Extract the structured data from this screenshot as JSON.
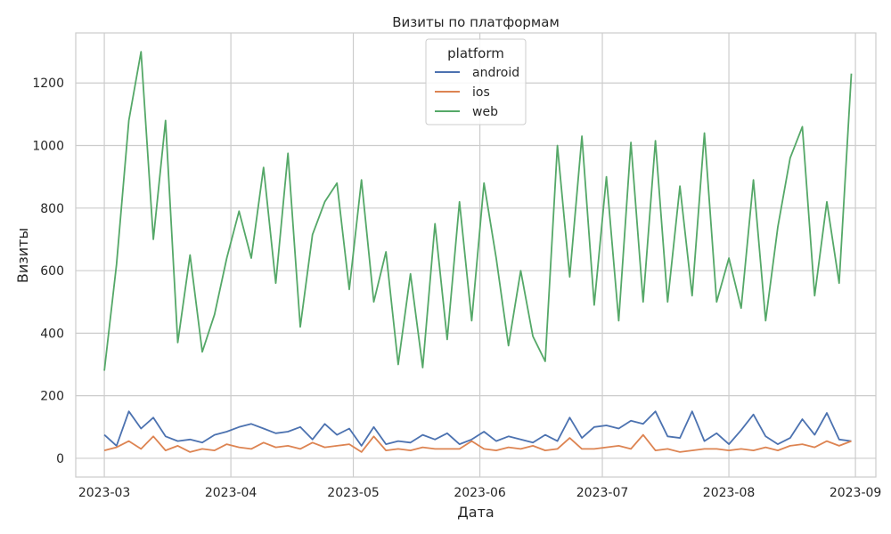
{
  "chart_data": {
    "type": "line",
    "title": "Визиты по платформам",
    "xlabel": "Дата",
    "ylabel": "Визиты",
    "xlim": [
      "2023-02-22",
      "2023-09-06"
    ],
    "ylim": [
      -60,
      1360
    ],
    "x_ticks": [
      "2023-03",
      "2023-04",
      "2023-05",
      "2023-06",
      "2023-07",
      "2023-08",
      "2023-09"
    ],
    "y_ticks": [
      0,
      200,
      400,
      600,
      800,
      1000,
      1200
    ],
    "grid": true,
    "legend": {
      "title": "platform",
      "position": "top-center"
    },
    "x": [
      "2023-03-01",
      "2023-03-04",
      "2023-03-07",
      "2023-03-10",
      "2023-03-13",
      "2023-03-16",
      "2023-03-19",
      "2023-03-22",
      "2023-03-25",
      "2023-03-28",
      "2023-03-31",
      "2023-04-03",
      "2023-04-06",
      "2023-04-09",
      "2023-04-12",
      "2023-04-15",
      "2023-04-18",
      "2023-04-21",
      "2023-04-24",
      "2023-04-27",
      "2023-04-30",
      "2023-05-03",
      "2023-05-06",
      "2023-05-09",
      "2023-05-12",
      "2023-05-15",
      "2023-05-18",
      "2023-05-21",
      "2023-05-24",
      "2023-05-27",
      "2023-05-30",
      "2023-06-02",
      "2023-06-05",
      "2023-06-08",
      "2023-06-11",
      "2023-06-14",
      "2023-06-17",
      "2023-06-20",
      "2023-06-23",
      "2023-06-26",
      "2023-06-29",
      "2023-07-02",
      "2023-07-05",
      "2023-07-08",
      "2023-07-11",
      "2023-07-14",
      "2023-07-17",
      "2023-07-20",
      "2023-07-23",
      "2023-07-26",
      "2023-07-29",
      "2023-08-01",
      "2023-08-04",
      "2023-08-07",
      "2023-08-10",
      "2023-08-13",
      "2023-08-16",
      "2023-08-19",
      "2023-08-22",
      "2023-08-25",
      "2023-08-28",
      "2023-08-31"
    ],
    "series": [
      {
        "name": "android",
        "color": "#4c72b0",
        "values": [
          75,
          40,
          150,
          95,
          130,
          70,
          55,
          60,
          50,
          75,
          85,
          100,
          110,
          95,
          80,
          85,
          100,
          60,
          110,
          75,
          95,
          40,
          100,
          45,
          55,
          50,
          75,
          60,
          80,
          45,
          60,
          85,
          55,
          70,
          60,
          50,
          75,
          55,
          130,
          65,
          100,
          105,
          95,
          120,
          110,
          150,
          70,
          65,
          150,
          55,
          80,
          45,
          90,
          140,
          70,
          45,
          65,
          125,
          75,
          145,
          60,
          55
        ]
      },
      {
        "name": "ios",
        "color": "#dd8452",
        "values": [
          25,
          35,
          55,
          30,
          70,
          25,
          40,
          20,
          30,
          25,
          45,
          35,
          30,
          50,
          35,
          40,
          30,
          50,
          35,
          40,
          45,
          20,
          70,
          25,
          30,
          25,
          35,
          30,
          30,
          30,
          55,
          30,
          25,
          35,
          30,
          40,
          25,
          30,
          65,
          30,
          30,
          35,
          40,
          30,
          75,
          25,
          30,
          20,
          25,
          30,
          30,
          25,
          30,
          25,
          35,
          25,
          40,
          45,
          35,
          55,
          40,
          55
        ]
      },
      {
        "name": "web",
        "color": "#55a868",
        "values": [
          280,
          620,
          1080,
          1300,
          700,
          1080,
          370,
          650,
          340,
          460,
          640,
          790,
          640,
          930,
          560,
          975,
          420,
          715,
          820,
          880,
          540,
          890,
          500,
          660,
          300,
          590,
          290,
          750,
          380,
          820,
          440,
          880,
          640,
          360,
          600,
          390,
          310,
          1000,
          580,
          1030,
          490,
          900,
          440,
          1010,
          500,
          1015,
          500,
          870,
          520,
          1040,
          500,
          640,
          480,
          890,
          440,
          740,
          960,
          1060,
          520,
          820,
          560,
          1230
        ]
      }
    ]
  }
}
